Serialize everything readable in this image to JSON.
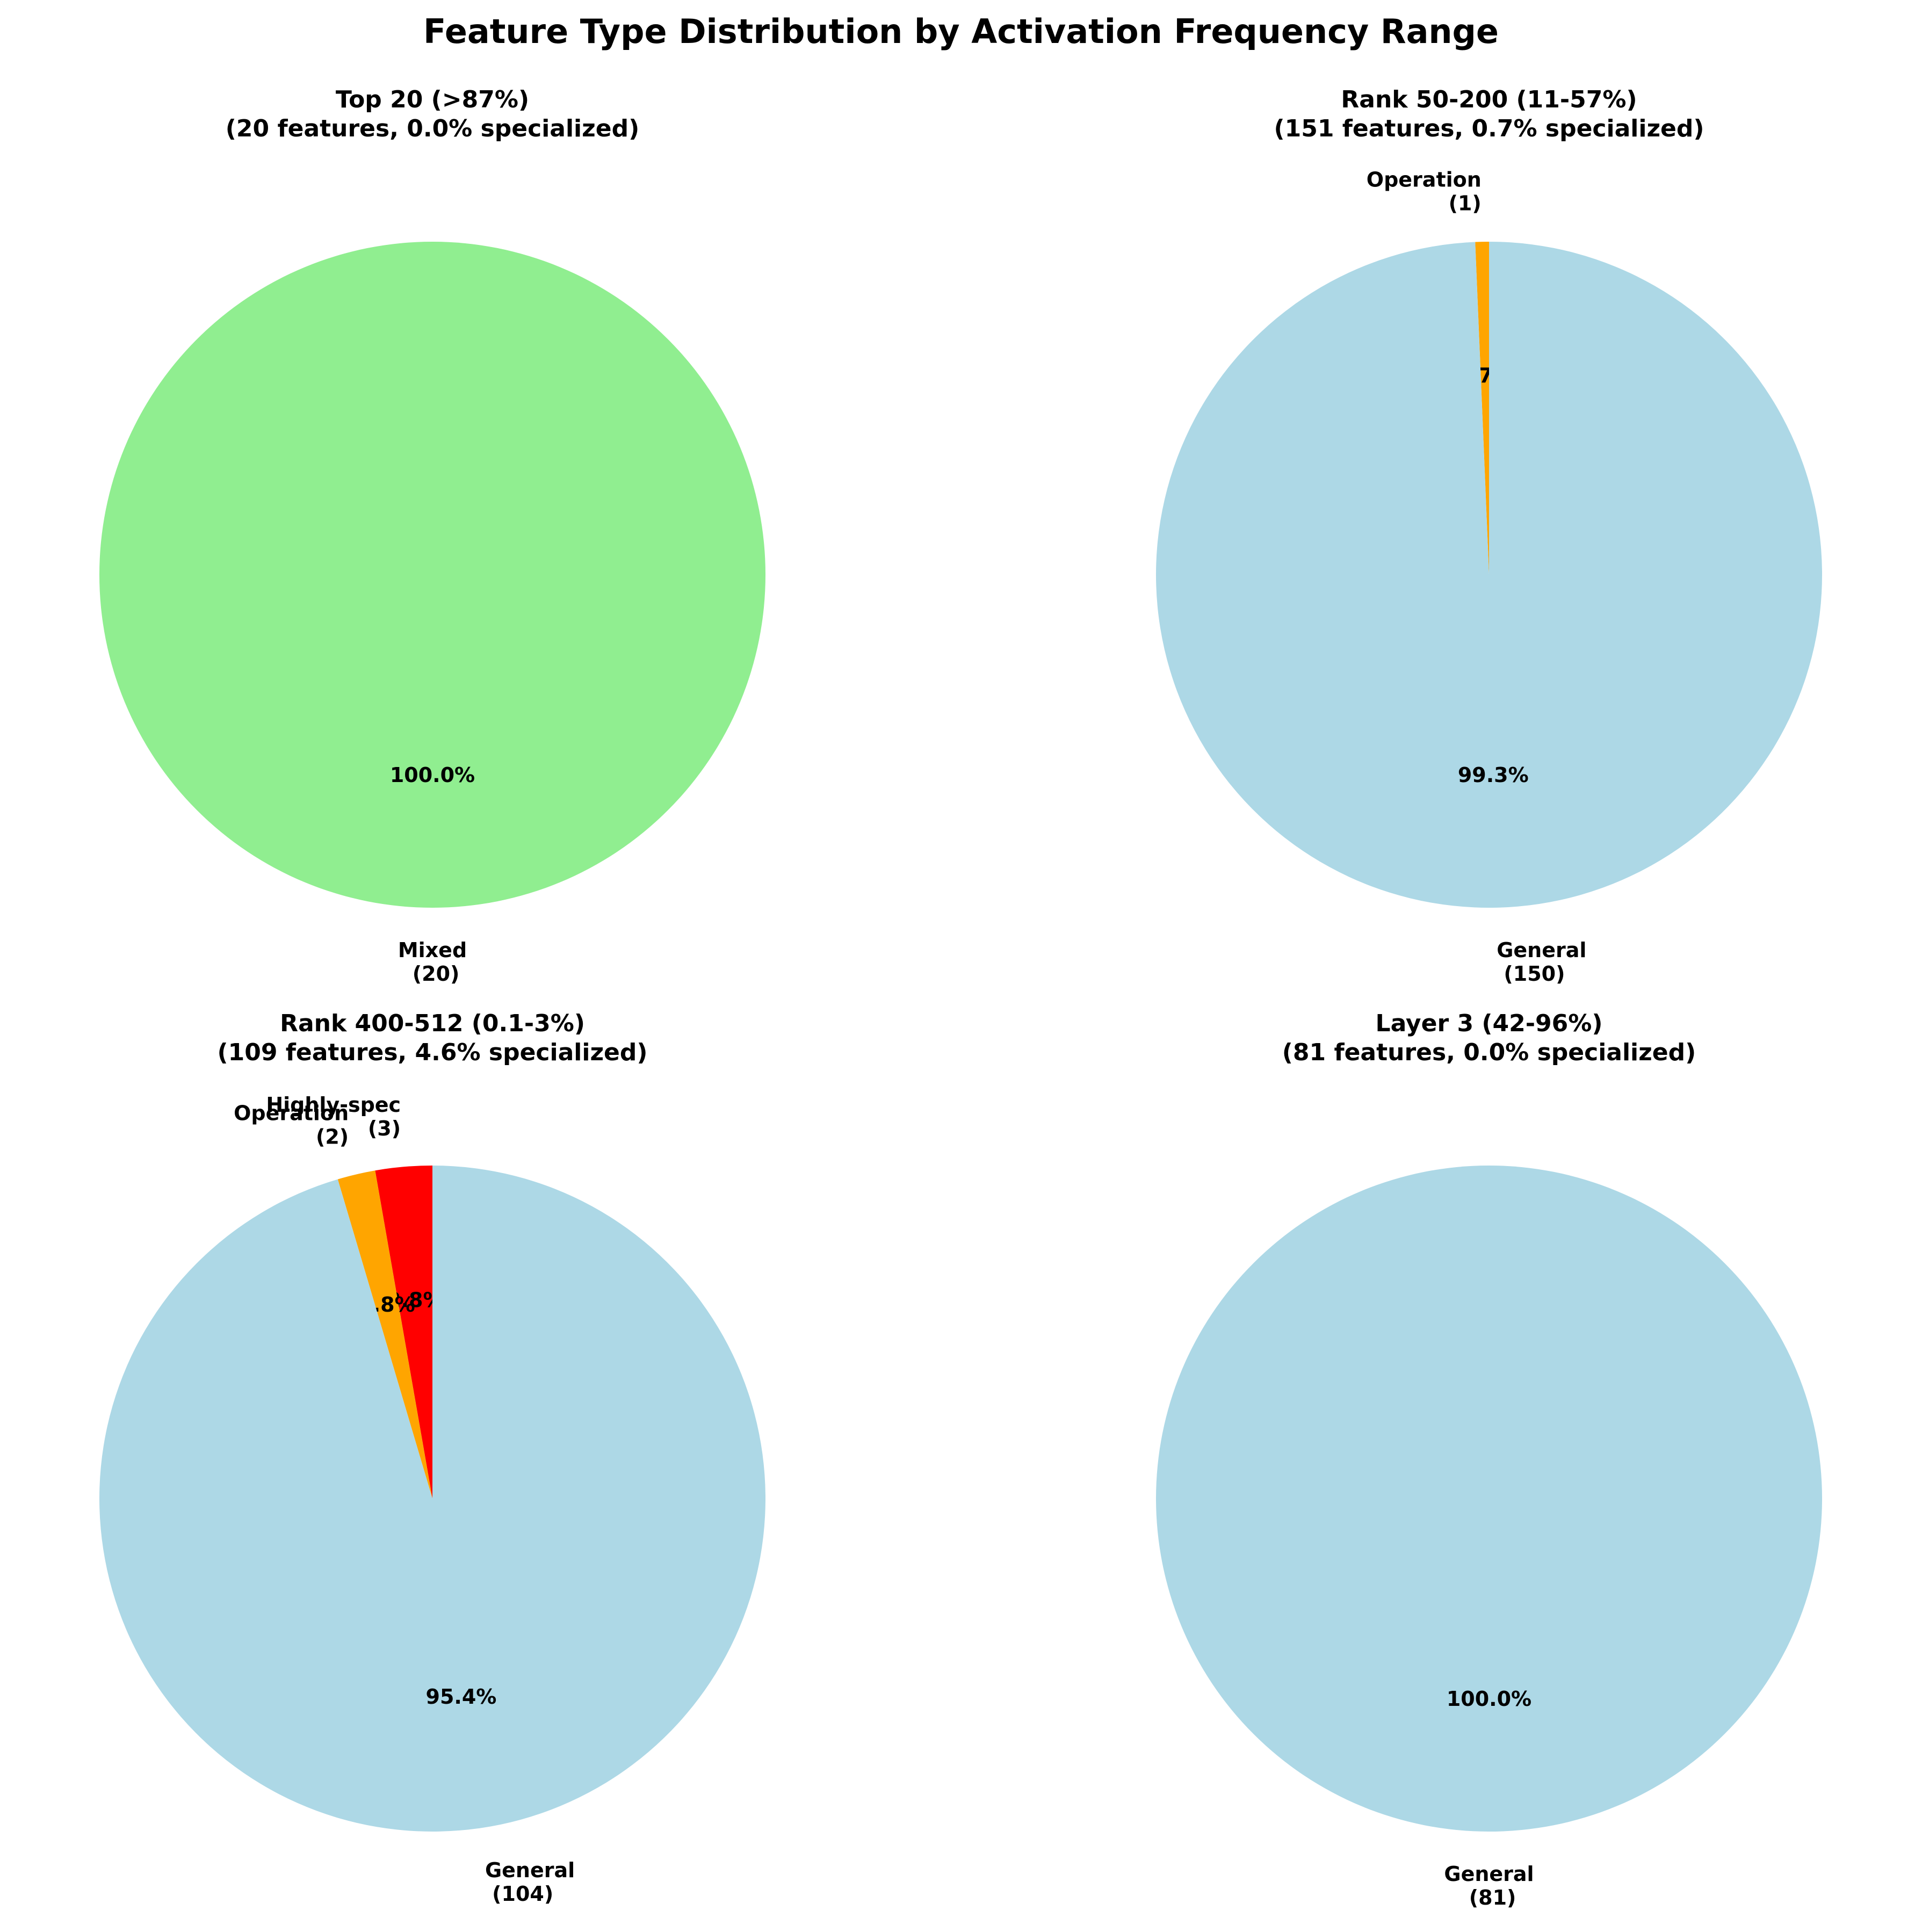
{
  "figure_title": "Feature Type Distribution by Activation Frequency Range",
  "chart_data": [
    {
      "type": "pie",
      "title": "Top 20 (>87%)",
      "subtitle": "(20 features, 0.0% specialized)",
      "slices": [
        {
          "label": "Mixed",
          "count": 20,
          "count_label": "(20)",
          "percent_label": "100.0%",
          "color": "#90EE90"
        }
      ]
    },
    {
      "type": "pie",
      "title": "Rank 50-200 (11-57%)",
      "subtitle": "(151 features, 0.7% specialized)",
      "slices": [
        {
          "label": "Operation",
          "count": 1,
          "count_label": "(1)",
          "percent_label": "0.7%",
          "color": "#FFA500"
        },
        {
          "label": "General",
          "count": 150,
          "count_label": "(150)",
          "percent_label": "99.3%",
          "color": "#ADD8E6"
        }
      ]
    },
    {
      "type": "pie",
      "title": "Rank 400-512 (0.1-3%)",
      "subtitle": "(109 features, 4.6% specialized)",
      "slices": [
        {
          "label": "Highly-spec",
          "count": 3,
          "count_label": "(3)",
          "percent_label": "2.8%",
          "color": "#FF0000"
        },
        {
          "label": "Operation",
          "count": 2,
          "count_label": "(2)",
          "percent_label": "1.8%",
          "color": "#FFA500"
        },
        {
          "label": "General",
          "count": 104,
          "count_label": "(104)",
          "percent_label": "95.4%",
          "color": "#ADD8E6"
        }
      ]
    },
    {
      "type": "pie",
      "title": "Layer 3 (42-96%)",
      "subtitle": "(81 features, 0.0% specialized)",
      "slices": [
        {
          "label": "General",
          "count": 81,
          "count_label": "(81)",
          "percent_label": "100.0%",
          "color": "#ADD8E6"
        }
      ]
    }
  ]
}
